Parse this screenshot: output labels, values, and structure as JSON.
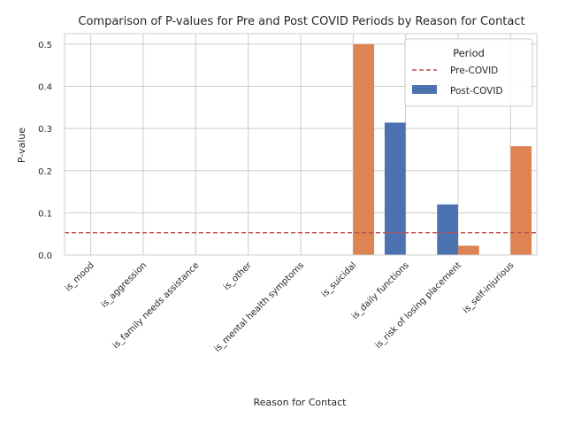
{
  "chart_data": {
    "type": "bar",
    "title": "Comparison of P-values for Pre and Post COVID Periods by Reason for Contact",
    "xlabel": "Reason for Contact",
    "ylabel": "P-value",
    "ylim": [
      0,
      0.525
    ],
    "yticks": [
      "0.0",
      "0.1",
      "0.2",
      "0.3",
      "0.4",
      "0.5"
    ],
    "ytick_values": [
      0,
      0.1,
      0.2,
      0.3,
      0.4,
      0.5
    ],
    "grid": true,
    "categories": [
      "is_mood",
      "is_aggression",
      "is_family needs assistance",
      "is_other",
      "is_mental health symptoms",
      "is_suicidal",
      "is_daily functions",
      "is_risk of losing placement",
      "is_self-injurious"
    ],
    "series": [
      {
        "name": "Post-COVID",
        "color": "#4c72b0",
        "values": [
          0,
          0,
          0,
          0,
          0,
          0,
          0.314,
          0.12,
          0
        ]
      },
      {
        "name": "",
        "color": "#dd8452",
        "values": [
          0,
          0,
          0,
          0,
          0,
          0.5,
          0,
          0.022,
          0.258
        ]
      }
    ],
    "reference_line": {
      "name": "Pre-COVID",
      "value": 0.053,
      "color": "#c44e52",
      "style": "dashed"
    },
    "legend": {
      "title": "Period",
      "placement": "top-right",
      "entries": [
        "Pre-COVID",
        "Post-COVID"
      ]
    }
  }
}
